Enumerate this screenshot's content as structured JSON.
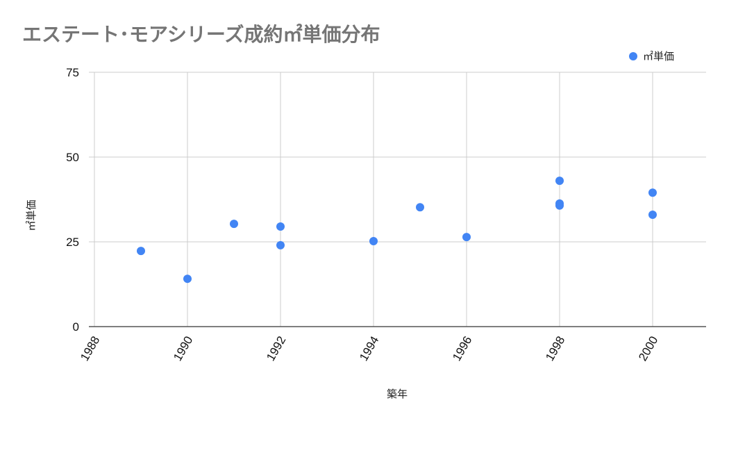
{
  "title": "エステート･モアシリーズ成約㎡単価分布",
  "legend": {
    "label": "㎡単価",
    "color": "#4285f4"
  },
  "chart_data": {
    "type": "scatter",
    "title": "エステート･モアシリーズ成約㎡単価分布",
    "xlabel": "築年",
    "ylabel": "㎡単価",
    "xlim": [
      1988,
      2001
    ],
    "ylim": [
      0,
      75
    ],
    "x_ticks": [
      "1988",
      "1990",
      "1992",
      "1994",
      "1996",
      "1998",
      "2000"
    ],
    "y_ticks": [
      "0",
      "25",
      "50",
      "75"
    ],
    "grid": true,
    "legend_position": "top-right",
    "series": [
      {
        "name": "㎡単価",
        "color": "#4285f4",
        "points": [
          {
            "x": 1989,
            "y": 22.3
          },
          {
            "x": 1990,
            "y": 14.1
          },
          {
            "x": 1991,
            "y": 30.3
          },
          {
            "x": 1992,
            "y": 29.5
          },
          {
            "x": 1992,
            "y": 24.0
          },
          {
            "x": 1994,
            "y": 25.2
          },
          {
            "x": 1995,
            "y": 35.2
          },
          {
            "x": 1996,
            "y": 26.4
          },
          {
            "x": 1998,
            "y": 43.0
          },
          {
            "x": 1998,
            "y": 36.3
          },
          {
            "x": 1998,
            "y": 35.7
          },
          {
            "x": 2000,
            "y": 39.5
          },
          {
            "x": 2000,
            "y": 33.0
          }
        ]
      }
    ]
  }
}
